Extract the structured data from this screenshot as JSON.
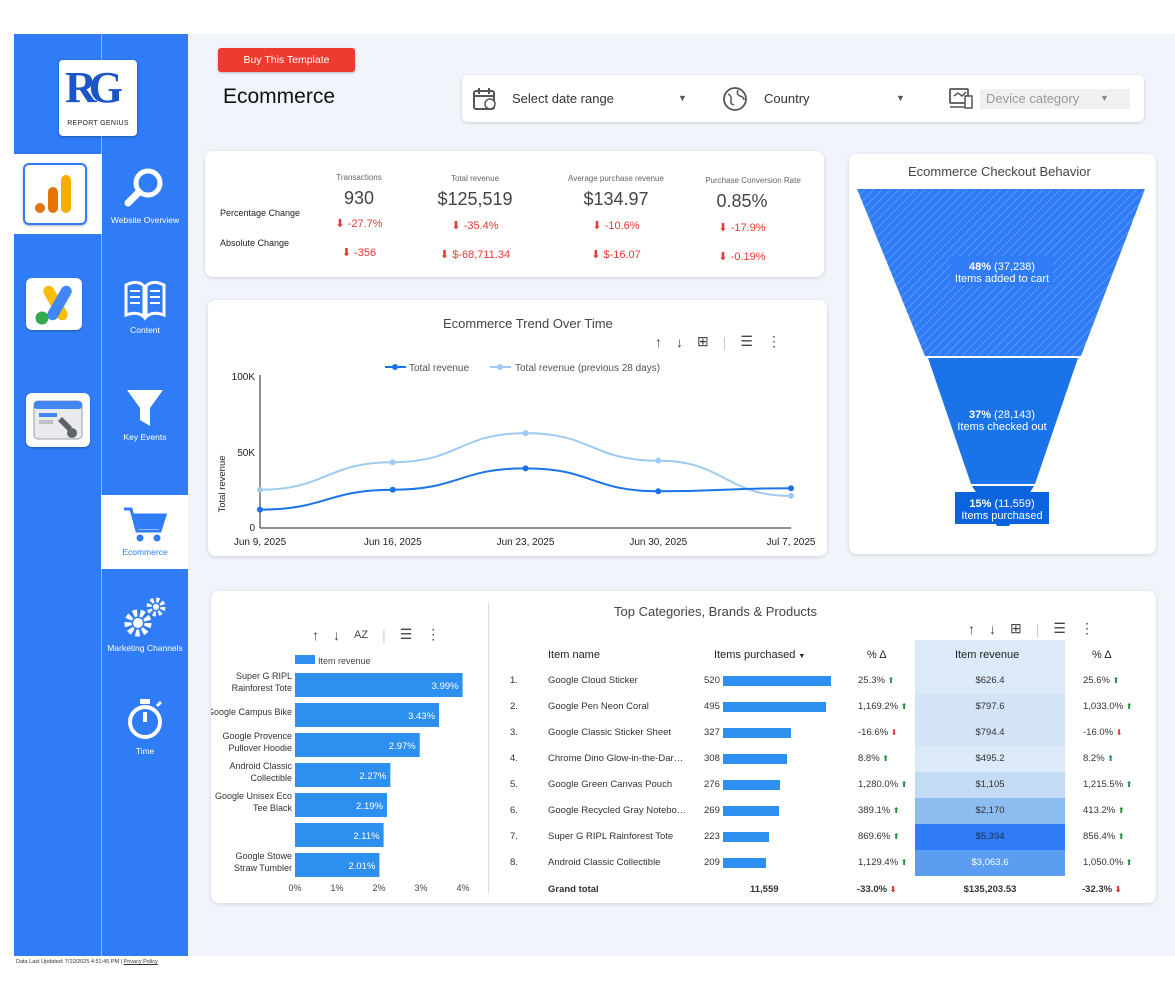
{
  "brand": {
    "logo_text": "RG",
    "logo_sub": "REPORT GENIUS"
  },
  "rail_icons": [
    "analytics-icon",
    "google-ads-icon",
    "search-console-icon"
  ],
  "nav": [
    {
      "label": "Website Overview",
      "icon": "search-icon"
    },
    {
      "label": "Content",
      "icon": "book-icon"
    },
    {
      "label": "Key Events",
      "icon": "funnel-icon"
    },
    {
      "label": "Ecommerce",
      "icon": "cart-icon",
      "active": true
    },
    {
      "label": "Marketing Channels",
      "icon": "gears-icon"
    },
    {
      "label": "Time",
      "icon": "stopwatch-icon"
    }
  ],
  "header": {
    "buy_button": "Buy This Template",
    "title": "Ecommerce"
  },
  "filters": {
    "date": "Select date range",
    "country": "Country",
    "device": "Device category"
  },
  "kpis": {
    "row_labels": [
      "Percentage Change",
      "Absolute Change"
    ],
    "items": [
      {
        "label": "Transactions",
        "value": "930",
        "pct": "-27.7%",
        "abs": "-356"
      },
      {
        "label": "Total revenue",
        "value": "$125,519",
        "pct": "-35.4%",
        "abs": "$-68,711.34"
      },
      {
        "label": "Average purchase revenue",
        "value": "$134.97",
        "pct": "-10.6%",
        "abs": "$-16.07"
      },
      {
        "label": "Purchase Conversion Rate",
        "value": "0.85%",
        "pct": "-17.9%",
        "abs": "-0.19%"
      }
    ]
  },
  "trend": {
    "title": "Ecommerce Trend Over Time",
    "legend": [
      "Total revenue",
      "Total revenue (previous 28 days)"
    ],
    "ylabel": "Total revenue",
    "yticks": [
      "100K",
      "50K",
      "0"
    ],
    "xticks": [
      "Jun 9, 2025",
      "Jun 16, 2025",
      "Jun 23, 2025",
      "Jun 30, 2025",
      "Jul 7, 2025"
    ]
  },
  "funnel": {
    "title": "Ecommerce Checkout Behavior",
    "steps": [
      {
        "pct": "48%",
        "count": "(37,238)",
        "label": "Items added to cart"
      },
      {
        "pct": "37%",
        "count": "(28,143)",
        "label": "Items checked out"
      },
      {
        "pct": "15%",
        "count": "(11,559)",
        "label": "Items purchased"
      }
    ]
  },
  "bars": {
    "legend": "Item revenue",
    "xticks": [
      "0%",
      "1%",
      "2%",
      "3%",
      "4%"
    ]
  },
  "table": {
    "title": "Top Categories, Brands & Products",
    "headers": [
      "Item name",
      "Items purchased",
      "% Δ",
      "Item revenue",
      "% Δ"
    ],
    "rows": [
      {
        "n": "1.",
        "name": "Google Cloud Sticker",
        "qty": "520",
        "qd": "25.3%",
        "rev": "$626.4",
        "rd": "25.6%"
      },
      {
        "n": "2.",
        "name": "Google Pen Neon Coral",
        "qty": "495",
        "qd": "1,169.2%",
        "rev": "$797.6",
        "rd": "1,033.0%"
      },
      {
        "n": "3.",
        "name": "Google Classic Sticker Sheet",
        "qty": "327",
        "qd": "-16.6%",
        "rev": "$794.4",
        "rd": "-16.0%"
      },
      {
        "n": "4.",
        "name": "Chrome Dino Glow-in-the-Dar…",
        "qty": "308",
        "qd": "8.8%",
        "rev": "$495.2",
        "rd": "8.2%"
      },
      {
        "n": "5.",
        "name": "Google Green Canvas Pouch",
        "qty": "276",
        "qd": "1,280.0%",
        "rev": "$1,105",
        "rd": "1,215.5%"
      },
      {
        "n": "6.",
        "name": "Google Recycled Gray Notebo…",
        "qty": "269",
        "qd": "389.1%",
        "rev": "$2,170",
        "rd": "413.2%"
      },
      {
        "n": "7.",
        "name": "Super G RIPL Rainforest Tote",
        "qty": "223",
        "qd": "869.6%",
        "rev": "$5,394",
        "rd": "856.4%"
      },
      {
        "n": "8.",
        "name": "Android Classic Collectible",
        "qty": "209",
        "qd": "1,129.4%",
        "rev": "$3,063.6",
        "rd": "1,050.0%"
      }
    ],
    "total": {
      "label": "Grand total",
      "qty": "11,559",
      "qd": "-33.0%",
      "rev": "$135,203.53",
      "rd": "-32.3%"
    }
  },
  "footer": {
    "updated": "Data Last Updated: 7/10/2025 4:51:45 PM",
    "privacy": "Privacy Policy"
  },
  "chart_data": [
    {
      "type": "line",
      "title": "Ecommerce Trend Over Time",
      "x": [
        "Jun 9, 2025",
        "Jun 16, 2025",
        "Jun 23, 2025",
        "Jun 30, 2025",
        "Jul 7, 2025"
      ],
      "ylabel": "Total revenue",
      "ylim": [
        0,
        100000
      ],
      "series": [
        {
          "name": "Total revenue",
          "values": [
            12000,
            25000,
            39000,
            24000,
            26000
          ],
          "color": "#1a73e8"
        },
        {
          "name": "Total revenue (previous 28 days)",
          "values": [
            25000,
            43000,
            62000,
            44000,
            21000
          ],
          "color": "#9ecbf1"
        }
      ]
    },
    {
      "type": "bar",
      "orientation": "horizontal",
      "legend": "Item revenue",
      "categories": [
        "Super G RIPL Rainforest Tote",
        "Google Campus Bike",
        "Google Provence Pullover Hoodie",
        "Android Classic Collectible",
        "Google Unisex Eco Tee Black",
        "",
        "Google Stowe Straw Tumbler"
      ],
      "values": [
        3.99,
        3.43,
        2.97,
        2.27,
        2.19,
        2.11,
        2.01
      ],
      "labels": [
        "3.99%",
        "3.43%",
        "2.97%",
        "2.27%",
        "2.19%",
        "2.11%",
        "2.01%"
      ],
      "xlim": [
        0,
        4
      ],
      "color": "#2d8ff0"
    }
  ]
}
